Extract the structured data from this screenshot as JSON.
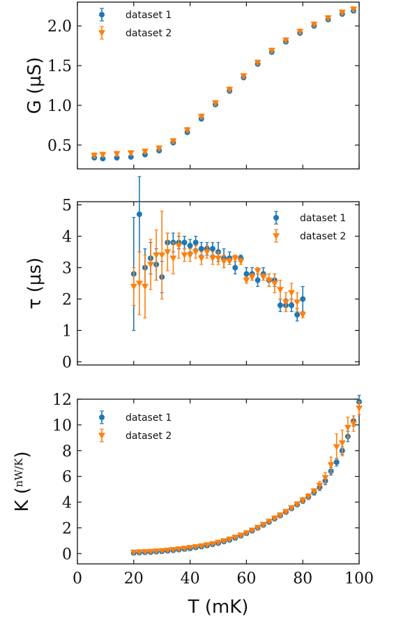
{
  "colors": {
    "series1": "#1f77b4",
    "series2": "#ff7f0e",
    "axis": "#111111"
  },
  "chart_data": [
    {
      "type": "scatter",
      "ylabel": "G (μS)",
      "xlim": [
        0,
        100
      ],
      "ylim": [
        0.2,
        2.3
      ],
      "yticks": [
        "0.5",
        "1.0",
        "1.5",
        "2.0"
      ],
      "ytick_values": [
        0.5,
        1.0,
        1.5,
        2.0
      ],
      "legend_position": "top-left",
      "series": [
        {
          "name": "dataset 1",
          "marker": "circle",
          "x": [
            6,
            9,
            14,
            19,
            24,
            29,
            34,
            39,
            44,
            49,
            54,
            59,
            64,
            69,
            74,
            79,
            84,
            89,
            94,
            98
          ],
          "y": [
            0.34,
            0.33,
            0.34,
            0.35,
            0.38,
            0.43,
            0.53,
            0.66,
            0.83,
            1.01,
            1.18,
            1.35,
            1.52,
            1.67,
            1.8,
            1.91,
            2.0,
            2.08,
            2.15,
            2.19
          ],
          "err": [
            0.02,
            0.02,
            0.02,
            0.02,
            0.02,
            0.02,
            0.02,
            0.02,
            0.02,
            0.02,
            0.02,
            0.02,
            0.02,
            0.02,
            0.02,
            0.02,
            0.02,
            0.02,
            0.02,
            0.02
          ]
        },
        {
          "name": "dataset 2",
          "marker": "triangle-down",
          "x": [
            6,
            9,
            14,
            19,
            24,
            29,
            34,
            39,
            44,
            49,
            54,
            59,
            64,
            69,
            74,
            79,
            84,
            89,
            94,
            98
          ],
          "y": [
            0.37,
            0.38,
            0.39,
            0.4,
            0.42,
            0.46,
            0.55,
            0.69,
            0.86,
            1.03,
            1.2,
            1.37,
            1.54,
            1.69,
            1.82,
            1.93,
            2.02,
            2.1,
            2.17,
            2.21
          ],
          "err": [
            0.03,
            0.03,
            0.03,
            0.03,
            0.03,
            0.03,
            0.03,
            0.03,
            0.03,
            0.03,
            0.03,
            0.03,
            0.03,
            0.03,
            0.03,
            0.03,
            0.03,
            0.03,
            0.03,
            0.03
          ]
        }
      ]
    },
    {
      "type": "scatter",
      "ylabel": "τ (μs)",
      "xlim": [
        0,
        100
      ],
      "ylim": [
        -0.1,
        5.1
      ],
      "yticks": [
        "0",
        "1",
        "2",
        "3",
        "4",
        "5"
      ],
      "ytick_values": [
        0,
        1,
        2,
        3,
        4,
        5
      ],
      "legend_position": "top-right",
      "series": [
        {
          "name": "dataset 1",
          "marker": "circle",
          "x": [
            20,
            22,
            24,
            26,
            28,
            30,
            32,
            34,
            36,
            38,
            40,
            42,
            44,
            46,
            48,
            50,
            52,
            54,
            56,
            58,
            60,
            62,
            64,
            66,
            68,
            70,
            72,
            74,
            76,
            78,
            80
          ],
          "y": [
            2.8,
            4.7,
            3.0,
            3.3,
            3.1,
            2.7,
            3.8,
            3.8,
            3.8,
            3.8,
            3.7,
            3.8,
            3.6,
            3.6,
            3.6,
            3.5,
            3.3,
            3.3,
            3.0,
            3.3,
            2.8,
            2.8,
            2.6,
            2.8,
            2.6,
            2.6,
            1.8,
            1.8,
            1.8,
            1.5,
            2.0
          ],
          "err": [
            1.8,
            1.2,
            0.6,
            0.5,
            0.5,
            0.5,
            0.3,
            0.3,
            0.2,
            0.2,
            0.2,
            0.2,
            0.2,
            0.2,
            0.2,
            0.3,
            0.3,
            0.2,
            0.2,
            0.1,
            0.2,
            0.2,
            0.2,
            0.2,
            0.2,
            0.2,
            0.2,
            0.2,
            0.2,
            0.2,
            0.4
          ]
        },
        {
          "name": "dataset 2",
          "marker": "triangle-down",
          "x": [
            20,
            22,
            24,
            26,
            28,
            30,
            32,
            34,
            36,
            38,
            40,
            42,
            44,
            46,
            48,
            50,
            52,
            54,
            56,
            58,
            60,
            62,
            64,
            66,
            68,
            70,
            72,
            74,
            76,
            78,
            80
          ],
          "y": [
            2.4,
            2.5,
            2.4,
            3.1,
            3.4,
            3.4,
            3.5,
            3.3,
            3.7,
            3.4,
            3.4,
            3.5,
            3.3,
            3.5,
            3.3,
            3.3,
            3.2,
            3.2,
            3.3,
            3.2,
            2.6,
            2.7,
            2.9,
            2.7,
            2.6,
            2.5,
            2.3,
            1.9,
            2.2,
            1.9,
            1.5
          ],
          "err": [
            0.6,
            1.0,
            1.0,
            0.8,
            0.8,
            1.4,
            0.6,
            0.5,
            0.4,
            0.2,
            0.2,
            0.2,
            0.2,
            0.2,
            0.2,
            0.2,
            0.2,
            0.1,
            0.1,
            0.1,
            0.1,
            0.1,
            0.1,
            0.1,
            0.2,
            0.3,
            0.3,
            0.3,
            0.3,
            0.3,
            0.1
          ]
        }
      ]
    },
    {
      "type": "scatter",
      "xlabel": "T (mK)",
      "ylabel": "K (nW/K)",
      "ylabel_prefix": "K",
      "ylabel_num": "nW",
      "ylabel_den": "K",
      "xlim": [
        0,
        100
      ],
      "xticks": [
        "0",
        "20",
        "40",
        "60",
        "80",
        "100"
      ],
      "xtick_values": [
        0,
        20,
        40,
        60,
        80,
        100
      ],
      "ylim": [
        -0.8,
        12
      ],
      "yticks": [
        "0",
        "2",
        "4",
        "6",
        "8",
        "10",
        "12"
      ],
      "ytick_values": [
        0,
        2,
        4,
        6,
        8,
        10,
        12
      ],
      "legend_position": "top-left",
      "series": [
        {
          "name": "dataset 1",
          "marker": "circle",
          "x": [
            20,
            22,
            24,
            26,
            28,
            30,
            32,
            34,
            36,
            38,
            40,
            42,
            44,
            46,
            48,
            50,
            52,
            54,
            56,
            58,
            60,
            62,
            64,
            66,
            68,
            70,
            72,
            74,
            76,
            78,
            80,
            82,
            84,
            86,
            88,
            90,
            92,
            94,
            96,
            98,
            100
          ],
          "y": [
            0.05,
            0.07,
            0.09,
            0.11,
            0.14,
            0.17,
            0.21,
            0.25,
            0.3,
            0.35,
            0.4,
            0.47,
            0.54,
            0.62,
            0.71,
            0.81,
            0.93,
            1.06,
            1.21,
            1.38,
            1.57,
            1.77,
            1.99,
            2.22,
            2.45,
            2.7,
            2.95,
            3.22,
            3.5,
            3.8,
            4.1,
            4.4,
            4.75,
            5.15,
            5.65,
            6.4,
            7.1,
            8.0,
            9.1,
            10.3,
            11.8
          ],
          "err": [
            0.05,
            0.05,
            0.05,
            0.05,
            0.05,
            0.05,
            0.05,
            0.05,
            0.05,
            0.05,
            0.05,
            0.05,
            0.05,
            0.05,
            0.05,
            0.05,
            0.1,
            0.1,
            0.1,
            0.1,
            0.1,
            0.1,
            0.1,
            0.1,
            0.1,
            0.15,
            0.15,
            0.15,
            0.15,
            0.15,
            0.2,
            0.2,
            0.2,
            0.25,
            0.3,
            0.3,
            0.3,
            0.3,
            0.4,
            0.4,
            0.5
          ]
        },
        {
          "name": "dataset 2",
          "marker": "triangle-down",
          "x": [
            20,
            22,
            24,
            26,
            28,
            30,
            32,
            34,
            36,
            38,
            40,
            42,
            44,
            46,
            48,
            50,
            52,
            54,
            56,
            58,
            60,
            62,
            64,
            66,
            68,
            70,
            72,
            74,
            76,
            78,
            80,
            82,
            84,
            86,
            88,
            90,
            92,
            94,
            96,
            98,
            100
          ],
          "y": [
            0.1,
            0.12,
            0.14,
            0.16,
            0.19,
            0.22,
            0.26,
            0.3,
            0.35,
            0.4,
            0.46,
            0.52,
            0.59,
            0.67,
            0.76,
            0.87,
            0.99,
            1.12,
            1.27,
            1.43,
            1.61,
            1.81,
            2.03,
            2.26,
            2.5,
            2.75,
            3.0,
            3.27,
            3.55,
            3.85,
            4.15,
            4.45,
            4.85,
            5.3,
            5.9,
            6.9,
            8.3,
            8.6,
            9.8,
            10.1,
            11.3
          ],
          "err": [
            0.05,
            0.05,
            0.05,
            0.05,
            0.05,
            0.05,
            0.05,
            0.05,
            0.05,
            0.05,
            0.05,
            0.05,
            0.05,
            0.05,
            0.05,
            0.05,
            0.1,
            0.1,
            0.1,
            0.1,
            0.1,
            0.1,
            0.1,
            0.1,
            0.1,
            0.15,
            0.15,
            0.15,
            0.15,
            0.15,
            0.2,
            0.2,
            0.2,
            0.3,
            0.4,
            0.6,
            1.0,
            1.0,
            0.8,
            0.6,
            0.5
          ]
        }
      ]
    }
  ]
}
